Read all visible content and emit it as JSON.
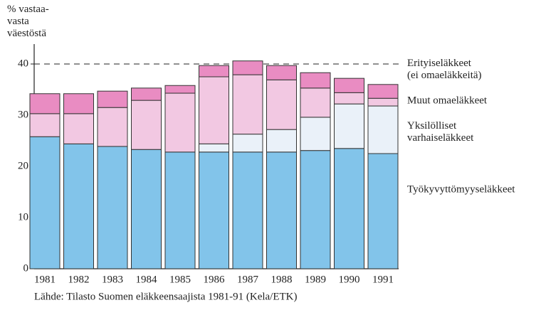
{
  "chart_data": {
    "type": "stacked_bar",
    "y_axis_label": "% vastaa-\nvasta\nväestöstä",
    "source": "Lähde: Tilasto Suomen eläkkeensaajista 1981-91    (Kela/ETK)",
    "categories": [
      "1981",
      "1982",
      "1983",
      "1984",
      "1985",
      "1986",
      "1987",
      "1988",
      "1989",
      "1990",
      "1991"
    ],
    "series": [
      {
        "name": "Työkyvyttömyyseläkkeet",
        "color": "#82c4ea",
        "values": [
          25.8,
          24.4,
          23.9,
          23.3,
          22.8,
          22.8,
          22.8,
          22.8,
          23.1,
          23.5,
          22.5
        ]
      },
      {
        "name": "Yksilölliset\nvarhaiseläkkeet",
        "color": "#eaf1f9",
        "values": [
          0,
          0,
          0,
          0,
          0,
          1.6,
          3.5,
          4.4,
          6.5,
          8.7,
          9.3
        ]
      },
      {
        "name": "Muut omaeläkkeet",
        "color": "#f2c8e2",
        "values": [
          4.5,
          5.9,
          7.6,
          9.6,
          11.5,
          13.1,
          11.6,
          9.7,
          5.7,
          2.2,
          1.5
        ]
      },
      {
        "name": "Erityiseläkkeet\n(ei omaeläkkeitä)",
        "color": "#e98cc2",
        "values": [
          3.9,
          3.9,
          3.2,
          2.4,
          1.5,
          2.2,
          2.7,
          2.8,
          3.0,
          2.8,
          2.7
        ]
      }
    ],
    "reference_line": 40,
    "ylim": [
      0,
      42
    ],
    "yticks": [
      0,
      10,
      20,
      30,
      40
    ]
  }
}
